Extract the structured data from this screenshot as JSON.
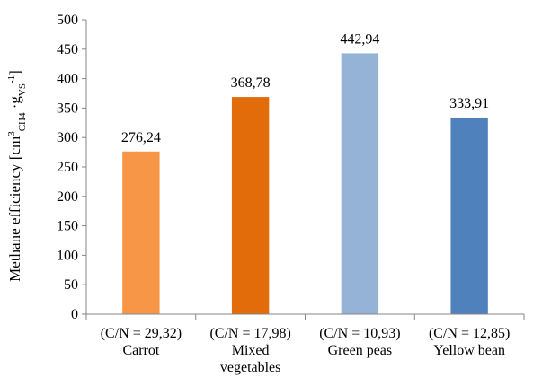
{
  "chart_data": {
    "type": "bar",
    "title": "",
    "xlabel": "",
    "ylabel_parts": {
      "main": "Methane efficiency  [cm",
      "sup1": "3",
      "sub1": "CH4",
      "mid": " ·",
      "main2": "g",
      "sub2": "VS",
      "sup2": "-1",
      "end": "]"
    },
    "ylim": [
      0,
      500
    ],
    "yticks": [
      0,
      50,
      100,
      150,
      200,
      250,
      300,
      350,
      400,
      450,
      500
    ],
    "grid": false,
    "legend": "none",
    "categories": [
      {
        "line1": "(C/N = 29,32)",
        "line2": "Carrot",
        "line3": ""
      },
      {
        "line1": "(C/N = 17,98)",
        "line2": "Mixed",
        "line3": "vegetables"
      },
      {
        "line1": "(C/N = 10,93)",
        "line2": "Green peas",
        "line3": ""
      },
      {
        "line1": "(C/N = 12,85)",
        "line2": "Yellow bean",
        "line3": ""
      }
    ],
    "values": [
      276.24,
      368.78,
      442.94,
      333.91
    ],
    "value_labels": [
      "276,24",
      "368,78",
      "442,94",
      "333,91"
    ],
    "colors": [
      "#f79646",
      "#e36c0a",
      "#95b3d7",
      "#4f81bd"
    ]
  }
}
